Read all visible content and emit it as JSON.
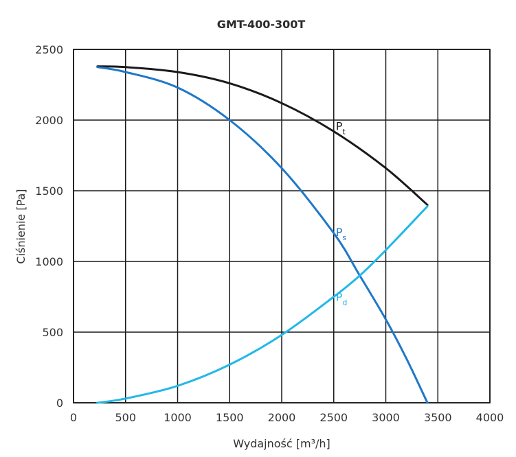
{
  "chart_data": {
    "type": "line",
    "title": "GMT-400-300T",
    "xlabel": "Wydajność [m³/h]",
    "ylabel": "Ciśnienie [Pa]",
    "xlim": [
      0,
      4000
    ],
    "ylim": [
      0,
      2500
    ],
    "xticks": [
      "0",
      "500",
      "1000",
      "1500",
      "2000",
      "2500",
      "3000",
      "3500",
      "4000"
    ],
    "yticks": [
      "0",
      "500",
      "1000",
      "1500",
      "2000",
      "2500"
    ],
    "grid": true,
    "series": [
      {
        "name": "Pt",
        "label_main": "P",
        "label_sub": "t",
        "color": "#1a1a1a",
        "x": [
          230,
          500,
          1000,
          1500,
          2000,
          2500,
          3000,
          3400
        ],
        "y": [
          2380,
          2375,
          2340,
          2260,
          2120,
          1920,
          1660,
          1400
        ]
      },
      {
        "name": "Ps",
        "label_main": "P",
        "label_sub": "s",
        "color": "#1f78c8",
        "x": [
          230,
          500,
          1000,
          1500,
          2000,
          2500,
          2750,
          3000,
          3200,
          3400
        ],
        "y": [
          2375,
          2340,
          2230,
          2000,
          1660,
          1200,
          900,
          590,
          310,
          0
        ]
      },
      {
        "name": "Pd",
        "label_main": "P",
        "label_sub": "d",
        "color": "#22b8e8",
        "x": [
          230,
          500,
          1000,
          1500,
          2000,
          2500,
          2750,
          3000,
          3400
        ],
        "y": [
          0,
          30,
          120,
          270,
          480,
          750,
          900,
          1080,
          1390
        ]
      }
    ]
  }
}
